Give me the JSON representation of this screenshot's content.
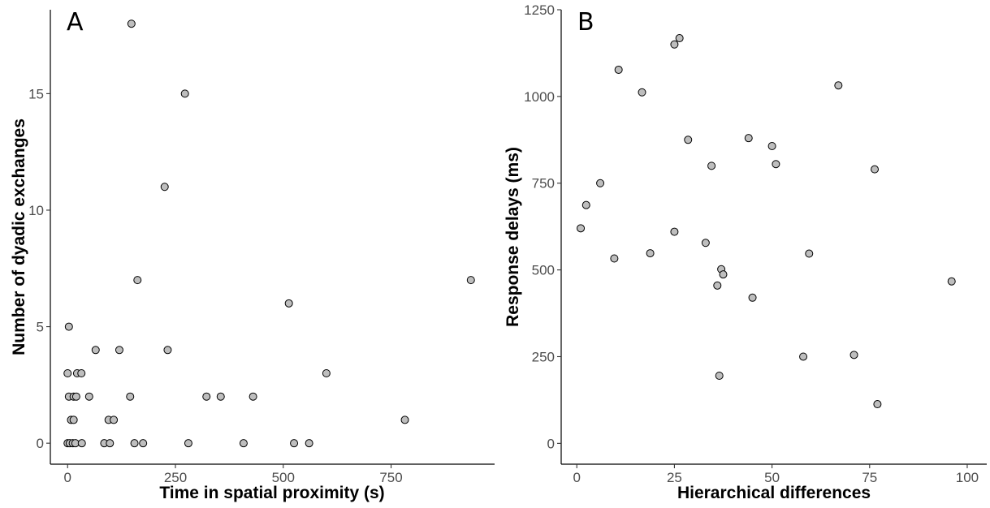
{
  "colors": {
    "point_fill": "#bebebe",
    "point_stroke": "#000000",
    "axis": "#000000",
    "tick_label": "#4d4d4d"
  },
  "chart_data": [
    {
      "type": "scatter",
      "panel_label": "A",
      "xlabel": "Time in spatial proximity (s)",
      "ylabel": "Number of dyadic exchanges",
      "xlim": [
        -40,
        990
      ],
      "ylim": [
        -0.9,
        18.6
      ],
      "xticks": [
        0,
        250,
        500,
        750
      ],
      "yticks": [
        0,
        5,
        10,
        15
      ],
      "grid": false,
      "points": [
        {
          "x": 148,
          "y": 18
        },
        {
          "x": 272,
          "y": 15
        },
        {
          "x": 225,
          "y": 11
        },
        {
          "x": 162,
          "y": 7
        },
        {
          "x": 935,
          "y": 7
        },
        {
          "x": 513,
          "y": 6
        },
        {
          "x": 3,
          "y": 5
        },
        {
          "x": 65,
          "y": 4
        },
        {
          "x": 120,
          "y": 4
        },
        {
          "x": 232,
          "y": 4
        },
        {
          "x": 0,
          "y": 3
        },
        {
          "x": 22,
          "y": 3
        },
        {
          "x": 32,
          "y": 3
        },
        {
          "x": 600,
          "y": 3
        },
        {
          "x": 3,
          "y": 2
        },
        {
          "x": 14,
          "y": 2
        },
        {
          "x": 20,
          "y": 2
        },
        {
          "x": 50,
          "y": 2
        },
        {
          "x": 145,
          "y": 2
        },
        {
          "x": 322,
          "y": 2
        },
        {
          "x": 355,
          "y": 2
        },
        {
          "x": 430,
          "y": 2
        },
        {
          "x": 8,
          "y": 1
        },
        {
          "x": 14,
          "y": 1
        },
        {
          "x": 95,
          "y": 1
        },
        {
          "x": 107,
          "y": 1
        },
        {
          "x": 782,
          "y": 1
        },
        {
          "x": 0,
          "y": 0
        },
        {
          "x": 5,
          "y": 0
        },
        {
          "x": 12,
          "y": 0
        },
        {
          "x": 18,
          "y": 0
        },
        {
          "x": 33,
          "y": 0
        },
        {
          "x": 85,
          "y": 0
        },
        {
          "x": 98,
          "y": 0
        },
        {
          "x": 155,
          "y": 0
        },
        {
          "x": 175,
          "y": 0
        },
        {
          "x": 280,
          "y": 0
        },
        {
          "x": 408,
          "y": 0
        },
        {
          "x": 525,
          "y": 0
        },
        {
          "x": 560,
          "y": 0
        }
      ]
    },
    {
      "type": "scatter",
      "panel_label": "B",
      "xlabel": "Hierarchical differences",
      "ylabel": "Response delays (ms)",
      "xlim": [
        -4,
        105
      ],
      "ylim": [
        -60,
        1250
      ],
      "xticks": [
        0,
        25,
        50,
        75,
        100
      ],
      "yticks": [
        0,
        250,
        500,
        750,
        1000,
        1250
      ],
      "grid": false,
      "points": [
        {
          "x": 26.3,
          "y": 1168
        },
        {
          "x": 25,
          "y": 1150
        },
        {
          "x": 10.7,
          "y": 1077
        },
        {
          "x": 67,
          "y": 1032
        },
        {
          "x": 16.7,
          "y": 1012
        },
        {
          "x": 44,
          "y": 880
        },
        {
          "x": 28.5,
          "y": 875
        },
        {
          "x": 50,
          "y": 857
        },
        {
          "x": 51,
          "y": 805
        },
        {
          "x": 34.5,
          "y": 800
        },
        {
          "x": 76.3,
          "y": 790
        },
        {
          "x": 6,
          "y": 750
        },
        {
          "x": 2.4,
          "y": 687
        },
        {
          "x": 1,
          "y": 620
        },
        {
          "x": 25,
          "y": 610
        },
        {
          "x": 33,
          "y": 578
        },
        {
          "x": 18.8,
          "y": 548
        },
        {
          "x": 59.5,
          "y": 547
        },
        {
          "x": 9.6,
          "y": 533
        },
        {
          "x": 37,
          "y": 502
        },
        {
          "x": 37.5,
          "y": 487
        },
        {
          "x": 96,
          "y": 467
        },
        {
          "x": 36,
          "y": 455
        },
        {
          "x": 45,
          "y": 420
        },
        {
          "x": 71,
          "y": 255
        },
        {
          "x": 58,
          "y": 250
        },
        {
          "x": 36.5,
          "y": 195
        },
        {
          "x": 77,
          "y": 113
        }
      ]
    }
  ]
}
